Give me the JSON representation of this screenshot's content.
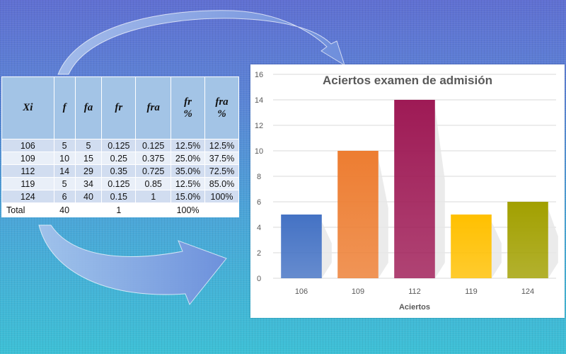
{
  "table": {
    "headers": [
      "Xi",
      "f",
      "fa",
      "fr",
      "fra",
      "fr\n%",
      "fra\n%"
    ],
    "rows": [
      [
        "106",
        "5",
        "5",
        "0.125",
        "0.125",
        "12.5%",
        "12.5%"
      ],
      [
        "109",
        "10",
        "15",
        "0.25",
        "0.375",
        "25.0%",
        "37.5%"
      ],
      [
        "112",
        "14",
        "29",
        "0.35",
        "0.725",
        "35.0%",
        "72.5%"
      ],
      [
        "119",
        "5",
        "34",
        "0.125",
        "0.85",
        "12.5%",
        "85.0%"
      ],
      [
        "124",
        "6",
        "40",
        "0.15",
        "1",
        "15.0%",
        "100%"
      ]
    ],
    "total_row": [
      "Total",
      "40",
      "",
      "1",
      "",
      "100%",
      ""
    ]
  },
  "chart_data": {
    "type": "bar",
    "title": "Aciertos examen de  admisión",
    "xlabel": "Aciertos",
    "ylabel": "",
    "categories": [
      "106",
      "109",
      "112",
      "119",
      "124"
    ],
    "values": [
      5,
      10,
      14,
      5,
      6
    ],
    "colors": [
      "#4472c4",
      "#ed7d31",
      "#9e1a55",
      "#ffc000",
      "#a2a000"
    ],
    "ylim": [
      0,
      16
    ],
    "yticks": [
      0,
      2,
      4,
      6,
      8,
      10,
      12,
      14,
      16
    ],
    "grid": true,
    "legend": "none"
  }
}
